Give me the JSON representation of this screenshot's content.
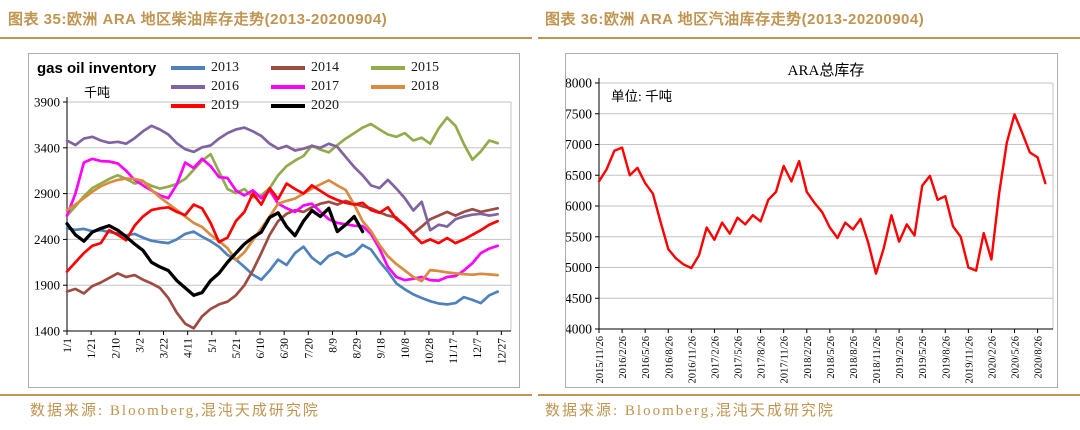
{
  "page": {
    "accent_color": "#bf9551",
    "left": {
      "title": "图表 35:欧洲 ARA 地区柴油库存走势(2013-20200904)",
      "source": "数据来源: Bloomberg,混沌天成研究院"
    },
    "right": {
      "title": "图表 36:欧洲 ARA 地区汽油库存走势(2013-20200904)",
      "source": "数据来源: Bloomberg,混沌天成研究院"
    }
  },
  "chart_data": [
    {
      "type": "line",
      "title": "gas oil inventory",
      "unit_label": "千吨",
      "ylabel": "千吨",
      "ylim": [
        1400,
        3900
      ],
      "yticks": [
        3900,
        3400,
        2900,
        2400,
        1900,
        1400
      ],
      "grid": true,
      "legend_position": "top-right",
      "x_domain": 368,
      "x_ticks": [
        0,
        20,
        40,
        60,
        80,
        100,
        120,
        140,
        160,
        180,
        200,
        220,
        240,
        260,
        280,
        300,
        320,
        340,
        360
      ],
      "x_tick_labels": [
        "1/1",
        "1/21",
        "2/10",
        "3/2",
        "3/22",
        "4/11",
        "5/1",
        "5/21",
        "6/10",
        "6/30",
        "7/20",
        "8/9",
        "8/29",
        "9/18",
        "10/8",
        "10/28",
        "11/17",
        "12/7",
        "12/27"
      ],
      "series": [
        {
          "name": "2013",
          "color": "#4F81BD",
          "stroke_width": 2.7,
          "step": 7,
          "values": [
            2520,
            2505,
            2515,
            2490,
            2500,
            2480,
            2465,
            2445,
            2460,
            2420,
            2385,
            2370,
            2360,
            2400,
            2460,
            2485,
            2430,
            2380,
            2320,
            2230,
            2180,
            2100,
            2015,
            1960,
            2060,
            2180,
            2120,
            2250,
            2320,
            2200,
            2130,
            2220,
            2260,
            2210,
            2250,
            2340,
            2290,
            2160,
            2050,
            1920,
            1855,
            1800,
            1760,
            1725,
            1700,
            1690,
            1705,
            1770,
            1740,
            1705,
            1790,
            1830
          ]
        },
        {
          "name": "2014",
          "color": "#9E4B42",
          "stroke_width": 2.7,
          "step": 7,
          "values": [
            1830,
            1860,
            1810,
            1890,
            1930,
            1980,
            2030,
            1990,
            2010,
            1960,
            1920,
            1870,
            1760,
            1600,
            1480,
            1430,
            1560,
            1640,
            1690,
            1720,
            1790,
            1900,
            2060,
            2250,
            2450,
            2600,
            2680,
            2720,
            2700,
            2750,
            2790,
            2810,
            2780,
            2820,
            2790,
            2760,
            2740,
            2695,
            2660,
            2640,
            2550,
            2465,
            2540,
            2620,
            2660,
            2700,
            2660,
            2700,
            2730,
            2700,
            2720,
            2740
          ]
        },
        {
          "name": "2015",
          "color": "#91AC4B",
          "stroke_width": 2.7,
          "step": 7,
          "values": [
            2660,
            2760,
            2870,
            2960,
            3010,
            3060,
            3100,
            3060,
            3010,
            3030,
            2985,
            2955,
            2975,
            3005,
            3060,
            3160,
            3260,
            3330,
            3140,
            2950,
            2905,
            2950,
            2860,
            2880,
            2960,
            3100,
            3200,
            3260,
            3310,
            3425,
            3380,
            3350,
            3430,
            3500,
            3560,
            3620,
            3660,
            3600,
            3545,
            3520,
            3560,
            3480,
            3510,
            3445,
            3610,
            3730,
            3640,
            3440,
            3270,
            3360,
            3480,
            3450
          ]
        },
        {
          "name": "2016",
          "color": "#8064A2",
          "stroke_width": 2.7,
          "step": 7,
          "values": [
            3480,
            3430,
            3500,
            3520,
            3480,
            3455,
            3465,
            3445,
            3505,
            3580,
            3640,
            3600,
            3545,
            3450,
            3385,
            3355,
            3405,
            3425,
            3500,
            3560,
            3600,
            3620,
            3580,
            3530,
            3445,
            3390,
            3420,
            3370,
            3390,
            3420,
            3400,
            3445,
            3410,
            3300,
            3190,
            3100,
            2990,
            2960,
            3050,
            2955,
            2850,
            2715,
            2810,
            2500,
            2560,
            2540,
            2620,
            2650,
            2670,
            2680,
            2660,
            2675
          ]
        },
        {
          "name": "2017",
          "color": "#FF00FF",
          "stroke_width": 2.7,
          "step": 7,
          "values": [
            2660,
            2900,
            3240,
            3280,
            3255,
            3250,
            3230,
            3150,
            3050,
            2990,
            2935,
            2880,
            2850,
            3000,
            3240,
            3180,
            3280,
            3200,
            3080,
            3070,
            2935,
            2880,
            2935,
            2850,
            2935,
            2790,
            2740,
            2700,
            2770,
            2790,
            2700,
            2620,
            2580,
            2565,
            2550,
            2545,
            2460,
            2300,
            2100,
            1990,
            1956,
            1970,
            1990,
            1956,
            1950,
            1990,
            2000,
            2060,
            2140,
            2250,
            2300,
            2330
          ]
        },
        {
          "name": "2018",
          "color": "#D98C3F",
          "stroke_width": 2.7,
          "step": 7,
          "values": [
            2720,
            2780,
            2850,
            2920,
            2980,
            3020,
            3050,
            3065,
            3060,
            3040,
            2940,
            2860,
            2790,
            2720,
            2650,
            2580,
            2535,
            2450,
            2380,
            2305,
            2175,
            2260,
            2390,
            2520,
            2650,
            2790,
            2820,
            2845,
            2900,
            2955,
            3000,
            3045,
            2990,
            2940,
            2780,
            2600,
            2490,
            2340,
            2215,
            2130,
            2060,
            1990,
            1945,
            2065,
            2055,
            2040,
            2030,
            2020,
            2015,
            2025,
            2018,
            2010
          ]
        },
        {
          "name": "2019",
          "color": "#FF0000",
          "stroke_width": 2.7,
          "step": 7,
          "values": [
            2050,
            2150,
            2250,
            2330,
            2360,
            2500,
            2450,
            2390,
            2550,
            2650,
            2720,
            2740,
            2750,
            2700,
            2665,
            2780,
            2740,
            2580,
            2370,
            2420,
            2600,
            2700,
            2900,
            2780,
            2960,
            2840,
            3010,
            2950,
            2900,
            2990,
            2930,
            2870,
            2830,
            2800,
            2780,
            2800,
            2720,
            2690,
            2750,
            2620,
            2555,
            2450,
            2360,
            2400,
            2360,
            2415,
            2360,
            2400,
            2450,
            2500,
            2560,
            2600
          ]
        },
        {
          "name": "2020",
          "color": "#000000",
          "stroke_width": 3.3,
          "step": 7,
          "values": [
            2570,
            2450,
            2380,
            2480,
            2520,
            2550,
            2500,
            2430,
            2350,
            2280,
            2150,
            2100,
            2060,
            1950,
            1870,
            1790,
            1820,
            1950,
            2030,
            2150,
            2250,
            2350,
            2420,
            2480,
            2640,
            2690,
            2540,
            2440,
            2600,
            2715,
            2650,
            2740,
            2485,
            2560,
            2650,
            2485
          ]
        }
      ]
    },
    {
      "type": "line",
      "title": "ARA总库存",
      "unit_label": "单位: 千吨",
      "ylim": [
        4000,
        8000
      ],
      "yticks": [
        8000,
        7500,
        7000,
        6500,
        6000,
        5500,
        5000,
        4500,
        4000
      ],
      "grid": true,
      "legend_position": "none",
      "x_domain": 59,
      "x_ticks": [
        0,
        3,
        6,
        9,
        12,
        15,
        18,
        21,
        24,
        27,
        30,
        33,
        36,
        39,
        42,
        45,
        48,
        51,
        54,
        57
      ],
      "x_tick_labels": [
        "2015/11/26",
        "2016/2/26",
        "2016/5/26",
        "2016/8/26",
        "2016/11/26",
        "2017/2/26",
        "2017/5/26",
        "2017/8/26",
        "2017/11/26",
        "2018/2/26",
        "2018/5/26",
        "2018/8/26",
        "2018/11/26",
        "2019/2/26",
        "2019/5/26",
        "2019/8/26",
        "2019/11/26",
        "2020/2/26",
        "2020/5/26",
        "2020/8/26"
      ],
      "series": [
        {
          "name": "ARA总库存",
          "color": "#FF0000",
          "stroke_width": 2.4,
          "step": 1,
          "values": [
            6400,
            6600,
            6900,
            6950,
            6500,
            6620,
            6370,
            6200,
            5740,
            5300,
            5150,
            5050,
            4990,
            5200,
            5650,
            5450,
            5730,
            5550,
            5810,
            5700,
            5850,
            5750,
            6100,
            6230,
            6650,
            6400,
            6730,
            6230,
            6050,
            5900,
            5650,
            5480,
            5730,
            5620,
            5790,
            5400,
            4900,
            5310,
            5850,
            5420,
            5700,
            5520,
            6330,
            6490,
            6100,
            6160,
            5670,
            5500,
            5000,
            4950,
            5560,
            5130,
            6200,
            7030,
            7490,
            7190,
            6870,
            6790,
            6370
          ]
        }
      ]
    }
  ]
}
